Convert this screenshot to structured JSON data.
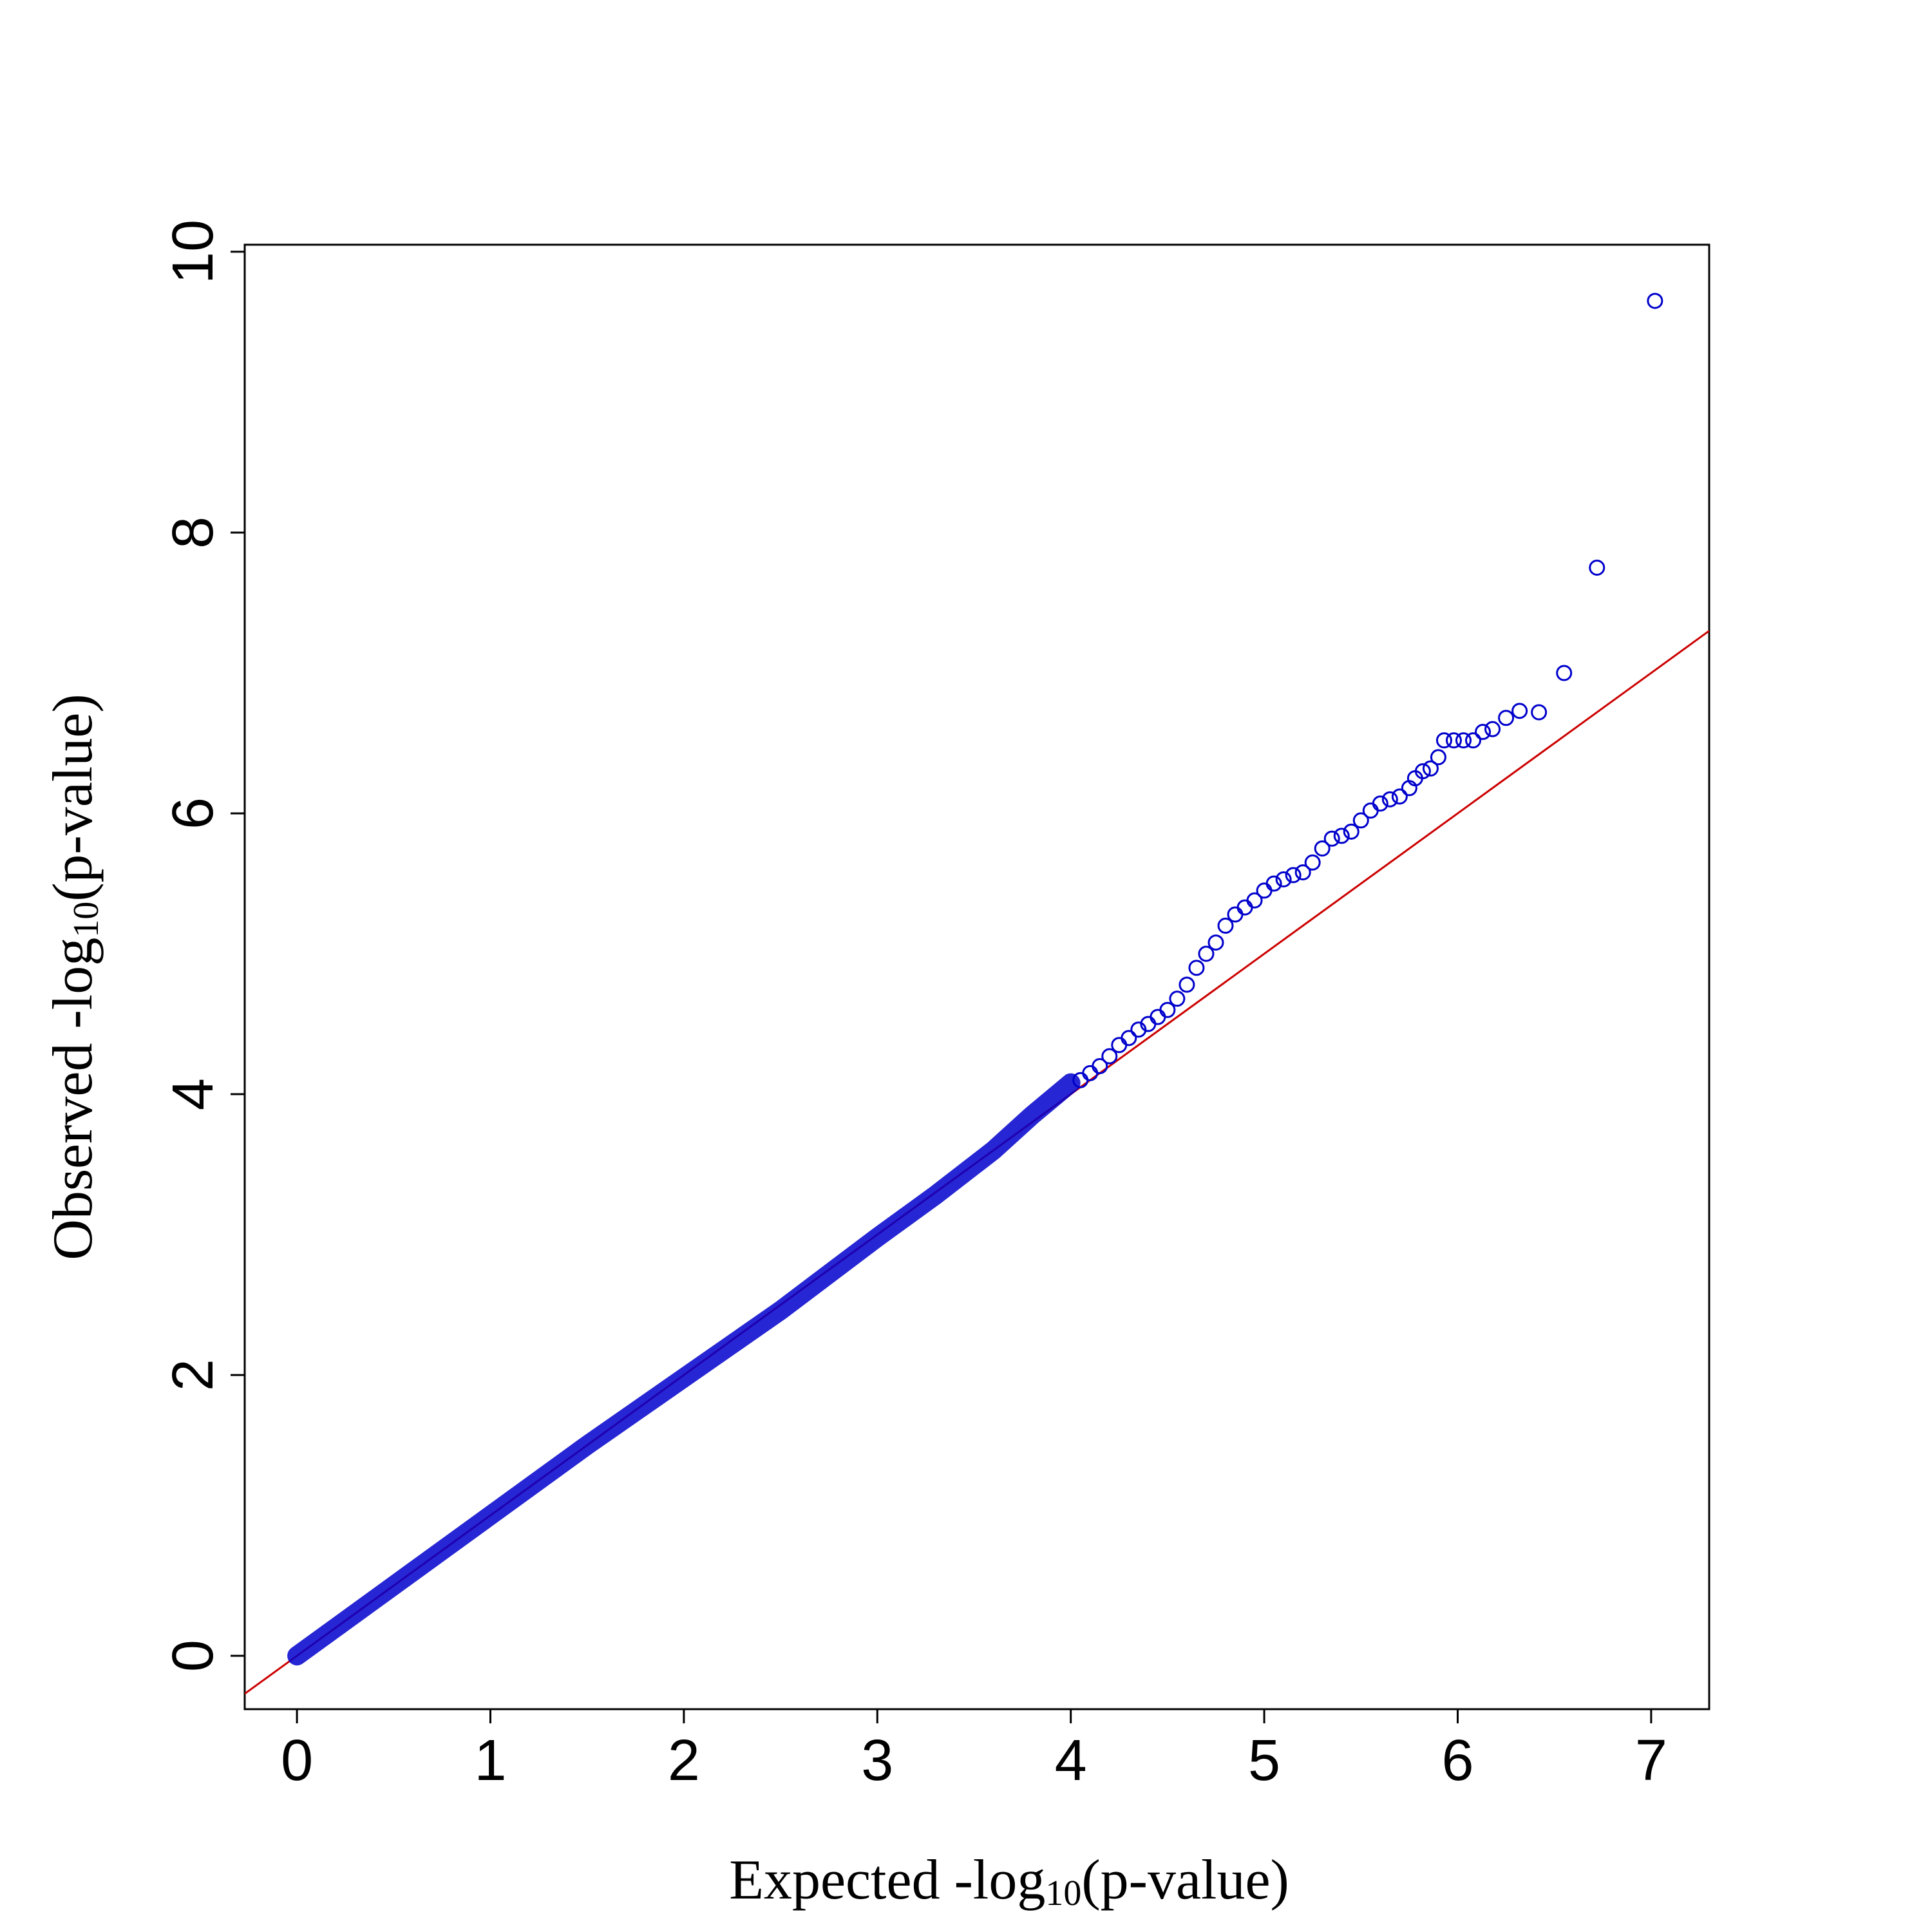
{
  "chart_data": {
    "type": "scatter",
    "title": "",
    "xlabel": {
      "prefix": "Expected -log",
      "subscript": "10",
      "suffix": "(p-value)"
    },
    "ylabel": {
      "prefix": "Observed -log",
      "subscript": "10",
      "suffix": "(p-value)"
    },
    "xlim": [
      -0.27,
      7.3
    ],
    "ylim": [
      -0.38,
      10.05
    ],
    "xticks": [
      0,
      1,
      2,
      3,
      4,
      5,
      6,
      7
    ],
    "yticks": [
      0,
      2,
      4,
      6,
      8,
      10
    ],
    "grid": false,
    "legend": "none",
    "reference_line": {
      "slope": 1,
      "intercept": 0,
      "color": "#cc0000"
    },
    "point_color": "#0000cc",
    "dense_band": {
      "x": [
        0.0,
        0.5,
        1.0,
        1.5,
        2.0,
        2.5,
        3.0,
        3.3,
        3.6,
        3.8,
        4.0
      ],
      "y": [
        0.0,
        0.5,
        1.0,
        1.5,
        1.98,
        2.46,
        2.98,
        3.28,
        3.6,
        3.85,
        4.08
      ]
    },
    "points": [
      [
        4.05,
        4.1
      ],
      [
        4.1,
        4.15
      ],
      [
        4.15,
        4.2
      ],
      [
        4.2,
        4.27
      ],
      [
        4.25,
        4.35
      ],
      [
        4.3,
        4.4
      ],
      [
        4.35,
        4.46
      ],
      [
        4.4,
        4.5
      ],
      [
        4.45,
        4.55
      ],
      [
        4.5,
        4.6
      ],
      [
        4.55,
        4.68
      ],
      [
        4.6,
        4.78
      ],
      [
        4.65,
        4.9
      ],
      [
        4.7,
        5.0
      ],
      [
        4.75,
        5.08
      ],
      [
        4.8,
        5.2
      ],
      [
        4.85,
        5.28
      ],
      [
        4.9,
        5.33
      ],
      [
        4.95,
        5.38
      ],
      [
        5.0,
        5.45
      ],
      [
        5.05,
        5.5
      ],
      [
        5.1,
        5.53
      ],
      [
        5.15,
        5.56
      ],
      [
        5.2,
        5.58
      ],
      [
        5.25,
        5.65
      ],
      [
        5.3,
        5.75
      ],
      [
        5.35,
        5.82
      ],
      [
        5.4,
        5.84
      ],
      [
        5.45,
        5.87
      ],
      [
        5.5,
        5.95
      ],
      [
        5.55,
        6.02
      ],
      [
        5.6,
        6.07
      ],
      [
        5.65,
        6.1
      ],
      [
        5.7,
        6.12
      ],
      [
        5.75,
        6.18
      ],
      [
        5.78,
        6.25
      ],
      [
        5.82,
        6.3
      ],
      [
        5.86,
        6.32
      ],
      [
        5.9,
        6.4
      ],
      [
        5.93,
        6.52
      ],
      [
        5.98,
        6.52
      ],
      [
        6.03,
        6.52
      ],
      [
        6.08,
        6.52
      ],
      [
        6.13,
        6.58
      ],
      [
        6.18,
        6.6
      ],
      [
        6.25,
        6.68
      ],
      [
        6.32,
        6.73
      ],
      [
        6.42,
        6.72
      ],
      [
        6.55,
        7.0
      ],
      [
        6.72,
        7.75
      ],
      [
        7.02,
        9.65
      ]
    ]
  }
}
